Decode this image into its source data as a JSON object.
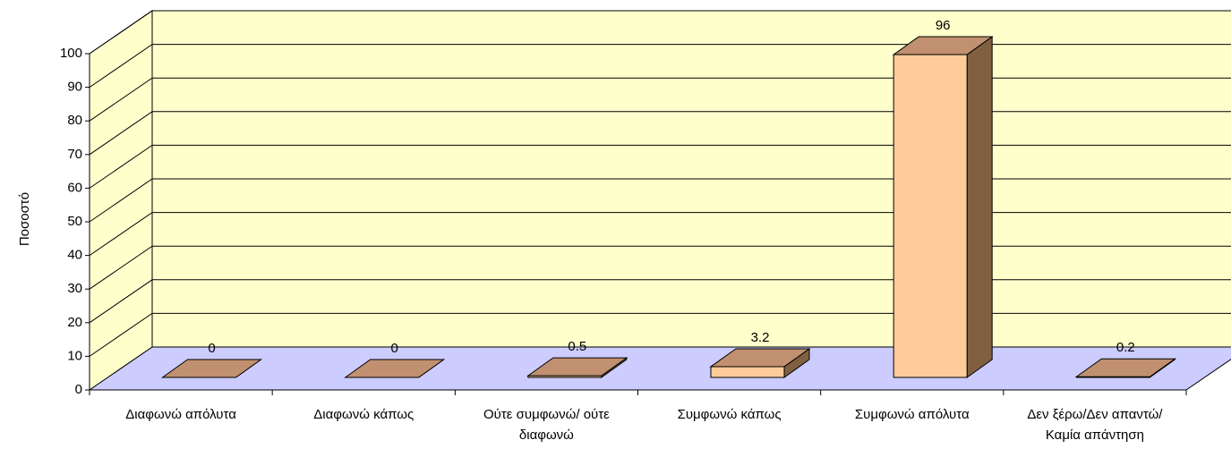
{
  "chart_data": {
    "type": "bar3d",
    "y_label": "Ποσοστό",
    "categories": [
      "Διαφωνώ απόλυτα",
      "Διαφωνώ κάπως",
      "Ούτε συμφωνώ/ ούτε διαφωνώ",
      "Συμφωνώ κάπως",
      "Συμφωνώ απόλυτα",
      "Δεν ξέρω/Δεν απαντώ/Καμία απάντηση"
    ],
    "values": [
      0,
      0,
      0.5,
      3.2,
      96,
      0.2
    ],
    "color": "#ffcc99",
    "ylim": [
      0,
      100
    ],
    "yticks": [
      0,
      10,
      20,
      30,
      40,
      50,
      60,
      70,
      80,
      90,
      100
    ],
    "grid": true
  }
}
